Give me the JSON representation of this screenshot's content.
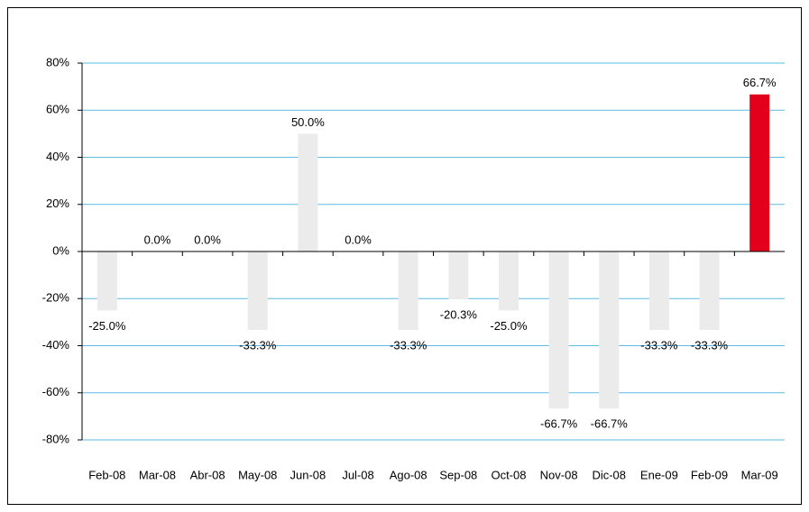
{
  "chart_data": {
    "type": "bar",
    "categories": [
      "Feb-08",
      "Mar-08",
      "Abr-08",
      "May-08",
      "Jun-08",
      "Jul-08",
      "Ago-08",
      "Sep-08",
      "Oct-08",
      "Nov-08",
      "Dic-08",
      "Ene-09",
      "Feb-09",
      "Mar-09"
    ],
    "values": [
      -25.0,
      0.0,
      0.0,
      -33.3,
      50.0,
      0.0,
      -33.3,
      -20.3,
      -25.0,
      -66.7,
      -66.7,
      -33.3,
      -33.3,
      66.7
    ],
    "value_labels": [
      "-25.0%",
      "0.0%",
      "0.0%",
      "-33.3%",
      "50.0%",
      "0.0%",
      "-33.3%",
      "-20.3%",
      "-25.0%",
      "-66.7%",
      "-66.7%",
      "-33.3%",
      "-33.3%",
      "66.7%"
    ],
    "colors": [
      "#ebebeb",
      "#ebebeb",
      "#ebebeb",
      "#ebebeb",
      "#ebebeb",
      "#ebebeb",
      "#ebebeb",
      "#ebebeb",
      "#ebebeb",
      "#ebebeb",
      "#ebebeb",
      "#ebebeb",
      "#ebebeb",
      "#e2001a"
    ],
    "ylim": [
      -80,
      80
    ],
    "yticks": [
      {
        "value": -80,
        "label": "-80%"
      },
      {
        "value": -60,
        "label": "-60%"
      },
      {
        "value": -40,
        "label": "-40%"
      },
      {
        "value": -20,
        "label": "-20%"
      },
      {
        "value": 0,
        "label": "0%"
      },
      {
        "value": 20,
        "label": "20%"
      },
      {
        "value": 40,
        "label": "40%"
      },
      {
        "value": 60,
        "label": "60%"
      },
      {
        "value": 80,
        "label": "80%"
      }
    ],
    "grid": true,
    "grid_color": "#5bbbe3"
  }
}
